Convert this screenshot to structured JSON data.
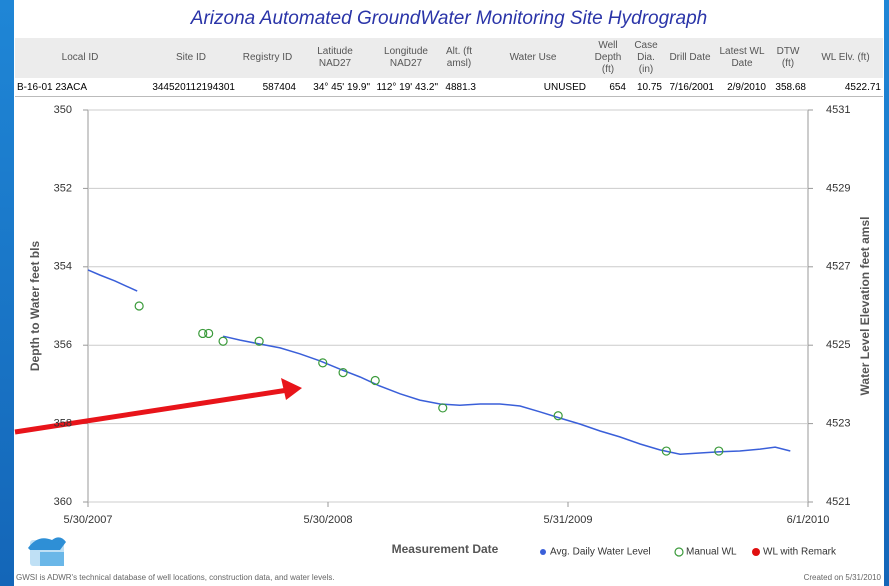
{
  "header": {
    "title": "Arizona Automated GroundWater Monitoring Site Hydrograph"
  },
  "table": {
    "columns": [
      "Local ID",
      "Site ID",
      "Registry ID",
      "Latitude\nNAD27",
      "Longitude\nNAD27",
      "Alt. (ft\namsl)",
      "Water Use",
      "Well\nDepth (ft)",
      "Case\nDia.\n(in)",
      "Drill Date",
      "Latest WL\nDate",
      "DTW\n(ft)",
      "WL Elv. (ft)"
    ],
    "rows": [
      [
        "B-16-01 23ACA",
        "344520112194301",
        "587404",
        "34° 45' 19.9\"",
        "112° 19' 43.2\"",
        "4881.3",
        "UNUSED",
        "654",
        "10.75",
        "7/16/2001",
        "2/9/2010",
        "358.68",
        "4522.71"
      ]
    ]
  },
  "chart_data": {
    "type": "line",
    "xlabel": "Measurement Date",
    "ylabel": "Depth to Water feet bls",
    "y2label": "Water Level Elevation feet amsl",
    "xlim": [
      "2007-05-30",
      "2010-06-01"
    ],
    "xticks": [
      {
        "value": "2007-05-30",
        "label": "5/30/2007"
      },
      {
        "value": "2008-05-30",
        "label": "5/30/2008"
      },
      {
        "value": "2009-05-31",
        "label": "5/31/2009"
      },
      {
        "value": "2010-06-01",
        "label": "6/1/2010"
      }
    ],
    "ylim": [
      360,
      350
    ],
    "yticks": [
      350,
      352,
      354,
      356,
      358,
      360
    ],
    "y2lim": [
      4521,
      4531
    ],
    "y2ticks": [
      4521,
      4523,
      4525,
      4527,
      4529,
      4531
    ],
    "grid": true,
    "series": [
      {
        "name": "Avg. Daily Water Level",
        "type": "line",
        "color": "#3a5fd9",
        "x": [
          "2007-05-30",
          "2007-06-17",
          "2007-07-10",
          "2007-08-13",
          "2007-09-02",
          "2007-12-22",
          "2008-01-17",
          "2008-02-16",
          "2008-03-18",
          "2008-04-17",
          "2008-05-18",
          "2008-06-17",
          "2008-07-18",
          "2008-08-17",
          "2008-09-17",
          "2008-10-17",
          "2008-11-17",
          "2008-12-17",
          "2009-01-17",
          "2009-02-16",
          "2009-03-19",
          "2009-04-18",
          "2009-05-19",
          "2009-06-18",
          "2009-07-19",
          "2009-08-18",
          "2009-09-18",
          "2009-10-18",
          "2009-11-18",
          "2009-12-18",
          "2010-01-18",
          "2010-02-17",
          "2010-03-20",
          "2010-04-12",
          "2010-05-05"
        ],
        "values": [
          354.08,
          354.21,
          354.36,
          354.62,
          null,
          355.77,
          355.87,
          355.97,
          356.07,
          356.22,
          356.4,
          356.61,
          356.81,
          357.04,
          357.24,
          357.4,
          357.5,
          357.53,
          357.5,
          357.5,
          357.55,
          357.7,
          357.86,
          358.01,
          358.19,
          358.34,
          358.52,
          358.67,
          358.78,
          358.75,
          358.72,
          358.7,
          358.65,
          358.6,
          358.7
        ]
      },
      {
        "name": "Manual WL",
        "type": "scatter",
        "color": "#3a9a3a",
        "x": [
          "2007-08-16",
          "2007-11-21",
          "2007-11-30",
          "2007-12-22",
          "2008-02-15",
          "2008-05-22",
          "2008-06-22",
          "2008-08-10",
          "2008-11-21",
          "2009-05-16",
          "2009-10-28",
          "2010-01-16"
        ],
        "values": [
          355.0,
          355.7,
          355.7,
          355.9,
          355.9,
          356.45,
          356.7,
          356.9,
          357.6,
          357.8,
          358.7,
          358.7
        ]
      },
      {
        "name": "WL with Remark",
        "type": "scatter",
        "color": "#e01010",
        "x": [],
        "values": []
      }
    ],
    "footer_left": "GWSI is ADWR's technical database of well locations, construction data, and water levels.",
    "footer_right": "Created on 5/31/2010"
  }
}
